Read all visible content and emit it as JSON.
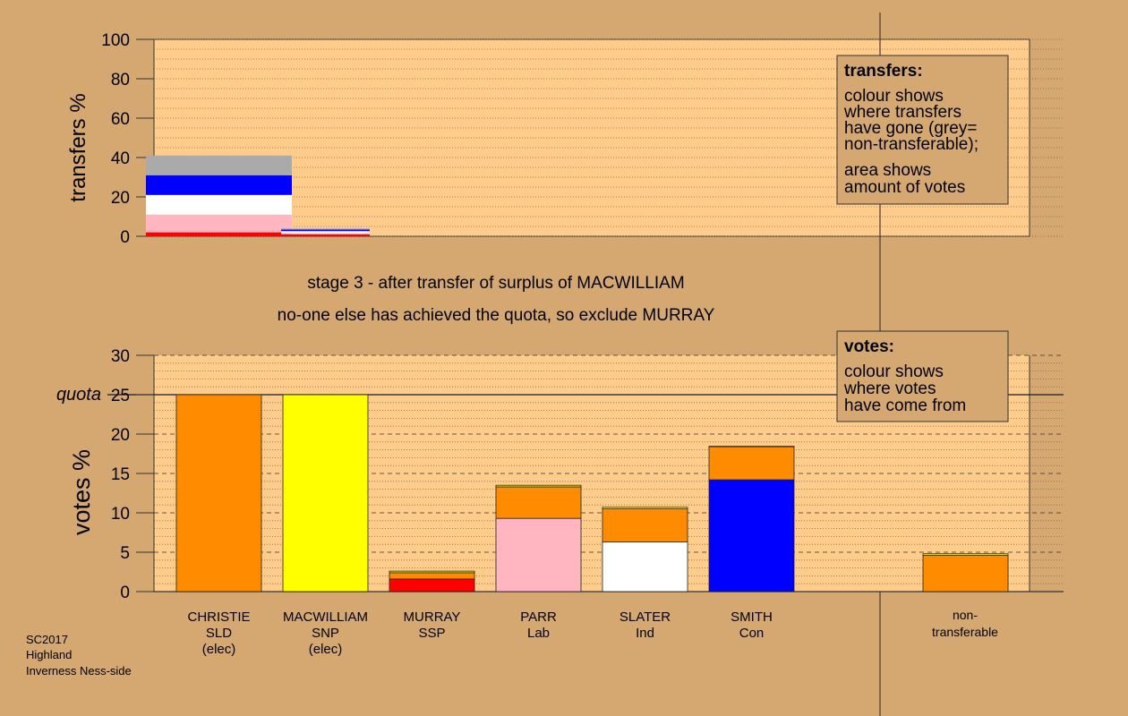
{
  "chart_data": [
    {
      "type": "bar",
      "ylabel": "transfers %",
      "ylim": [
        0,
        100
      ],
      "yticks": [
        0,
        20,
        40,
        60,
        80,
        100
      ],
      "grid": "dotted",
      "stacked": true,
      "bars": [
        {
          "segments": [
            {
              "color": "#ff0000",
              "value": 2
            },
            {
              "color": "#ffb6c1",
              "value": 9
            },
            {
              "color": "#ffffff",
              "value": 10
            },
            {
              "color": "#0000ff",
              "value": 10
            },
            {
              "color": "#aaaaaa",
              "value": 10
            }
          ]
        },
        {
          "segments": [
            {
              "color": "#ff0000",
              "value": 1
            },
            {
              "color": "#ffb6c1",
              "value": 0.6
            },
            {
              "color": "#ffffff",
              "value": 1
            },
            {
              "color": "#0000ff",
              "value": 0.8
            },
            {
              "color": "#aaaaaa",
              "value": 0.6
            }
          ]
        }
      ],
      "legend_box": {
        "title": "transfers:",
        "lines_1": [
          "colour shows",
          "where transfers",
          "have gone (grey=",
          "non-transferable);"
        ],
        "lines_2": [
          "area shows",
          "amount of votes"
        ]
      }
    },
    {
      "type": "bar",
      "ylabel": "votes %",
      "ylim": [
        0,
        30
      ],
      "yticks": [
        0,
        5,
        10,
        15,
        20,
        25,
        30
      ],
      "grid": "dashed",
      "stacked": true,
      "quota": {
        "label": "quota",
        "value": 25
      },
      "candidates": [
        {
          "name": "CHRISTIE",
          "party": "SLD",
          "note": "(elec)",
          "segments": [
            {
              "color": "#ff8c00",
              "value": 25
            }
          ]
        },
        {
          "name": "MACWILLIAM",
          "party": "SNP",
          "note": "(elec)",
          "segments": [
            {
              "color": "#ffff00",
              "value": 25
            }
          ]
        },
        {
          "name": "MURRAY",
          "party": "SSP",
          "note": "",
          "segments": [
            {
              "color": "#ff0000",
              "value": 1.6
            },
            {
              "color": "#ff8c00",
              "value": 0.8
            },
            {
              "color": "#ffff00",
              "value": 0.2
            }
          ]
        },
        {
          "name": "PARR",
          "party": "Lab",
          "note": "",
          "segments": [
            {
              "color": "#ffb6c1",
              "value": 9.3
            },
            {
              "color": "#ff8c00",
              "value": 4
            },
            {
              "color": "#ffff00",
              "value": 0.2
            }
          ]
        },
        {
          "name": "SLATER",
          "party": "Ind",
          "note": "",
          "segments": [
            {
              "color": "#ffffff",
              "value": 6.3
            },
            {
              "color": "#ff8c00",
              "value": 4.2
            },
            {
              "color": "#ffff00",
              "value": 0.2
            }
          ]
        },
        {
          "name": "SMITH",
          "party": "Con",
          "note": "",
          "segments": [
            {
              "color": "#0000ff",
              "value": 14.2
            },
            {
              "color": "#ff8c00",
              "value": 4.2
            },
            {
              "color": "#ffff00",
              "value": 0.05
            }
          ]
        }
      ],
      "nontransferable": {
        "label_1": "non-",
        "label_2": "transferable",
        "segments": [
          {
            "color": "#ff8c00",
            "value": 4.6
          },
          {
            "color": "#ffff00",
            "value": 0.2
          }
        ]
      },
      "legend_box": {
        "title": "votes:",
        "lines_1": [
          "colour shows",
          "where votes",
          "have come from"
        ]
      }
    }
  ],
  "caption": {
    "line1": "stage 3 - after transfer of surplus of MACWILLIAM",
    "line2": "no-one else has achieved the quota, so exclude MURRAY"
  },
  "footer": {
    "line1": "SC2017",
    "line2": "Highland",
    "line3": "Inverness Ness-side"
  },
  "colors": {
    "background": "#d4a870",
    "panel": "#ffcc8c"
  }
}
